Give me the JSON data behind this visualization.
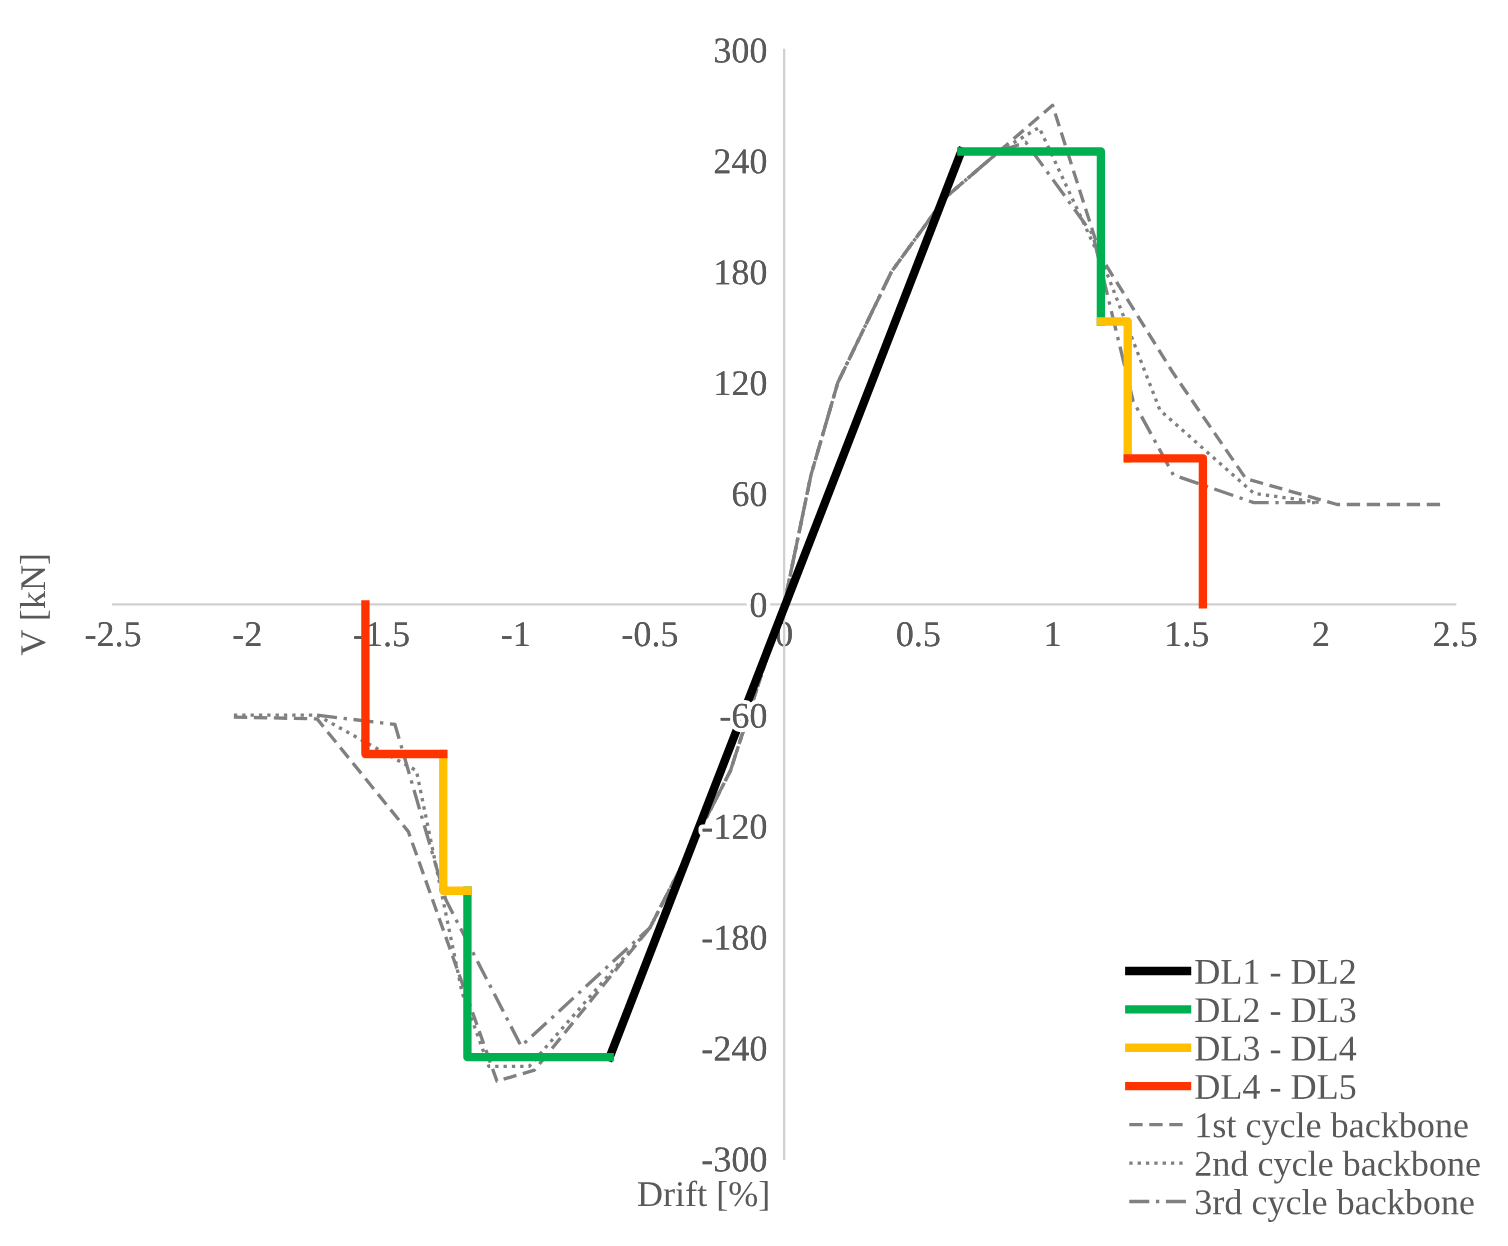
{
  "chart_data": {
    "type": "line",
    "xlabel": "Drift [%]",
    "ylabel": "V [kN]",
    "xlim": [
      -2.5,
      2.5
    ],
    "ylim": [
      -300,
      300
    ],
    "xticks": [
      -2.5,
      -2,
      -1.5,
      -1,
      -0.5,
      0,
      0.5,
      1,
      1.5,
      2,
      2.5
    ],
    "yticks": [
      -300,
      -240,
      -180,
      -120,
      -60,
      0,
      60,
      120,
      180,
      240,
      300
    ],
    "grid": false,
    "legend": "bottom right",
    "marker": "none",
    "series": [
      {
        "name": "DL1 - DL2",
        "color": "#000000",
        "line_style": "solid",
        "x": [
          -0.65,
          0.66
        ],
        "values": [
          -245,
          245
        ]
      },
      {
        "name": "DL2 - DL3",
        "color": "#00b050",
        "line_style": "solid",
        "x": [
          -1.18,
          -1.18,
          -0.65,
          null,
          0.66,
          1.18,
          1.18
        ],
        "values": [
          -155,
          -245,
          -245,
          null,
          245,
          245,
          153
        ]
      },
      {
        "name": "DL3 - DL4",
        "color": "#ffc000",
        "line_style": "solid",
        "x": [
          -1.27,
          -1.27,
          -1.18,
          null,
          1.18,
          1.28,
          1.28
        ],
        "values": [
          -81,
          -155,
          -155,
          null,
          153,
          153,
          79
        ]
      },
      {
        "name": "DL4 - DL5",
        "color": "#ff3300",
        "line_style": "solid",
        "x": [
          -1.56,
          -1.56,
          -1.27,
          null,
          1.28,
          1.56,
          1.56
        ],
        "values": [
          0,
          -81,
          -81,
          null,
          79,
          79,
          0
        ]
      },
      {
        "name": "1st cycle backbone",
        "color": "#808080",
        "line_style": "dashed",
        "x": [
          -2.05,
          -1.74,
          -1.4,
          -1.07,
          -0.93,
          -0.5,
          -0.2,
          0,
          0.1,
          0.2,
          0.4,
          0.6,
          0.8,
          1.0,
          1.18,
          1.45,
          1.72,
          2.06,
          2.45
        ],
        "values": [
          -61,
          -62,
          -123,
          -258,
          -252,
          -175,
          -90,
          0,
          70,
          120,
          180,
          220,
          245,
          270,
          188,
          125,
          68,
          54,
          54
        ]
      },
      {
        "name": "2nd cycle backbone",
        "color": "#808080",
        "line_style": "dotted",
        "x": [
          -2.05,
          -1.74,
          -1.37,
          -1.2,
          -1.1,
          -0.95,
          -0.5,
          -0.2,
          0,
          0.1,
          0.2,
          0.4,
          0.6,
          0.8,
          0.95,
          1.2,
          1.4,
          1.75,
          2.0
        ],
        "values": [
          -60,
          -60,
          -90,
          -210,
          -250,
          -250,
          -175,
          -90,
          0,
          70,
          120,
          180,
          220,
          245,
          258,
          180,
          105,
          60,
          55
        ]
      },
      {
        "name": "3rd cycle backbone",
        "color": "#808080",
        "line_style": "dashdot",
        "x": [
          -1.74,
          -1.45,
          -1.26,
          -0.98,
          -0.5,
          -0.2,
          0,
          0.1,
          0.2,
          0.4,
          0.6,
          0.8,
          0.9,
          1.15,
          1.3,
          1.45,
          1.75,
          2.0
        ],
        "values": [
          -60,
          -65,
          -160,
          -239,
          -175,
          -90,
          0,
          70,
          120,
          180,
          220,
          245,
          250,
          200,
          110,
          70,
          55,
          55
        ]
      }
    ]
  }
}
